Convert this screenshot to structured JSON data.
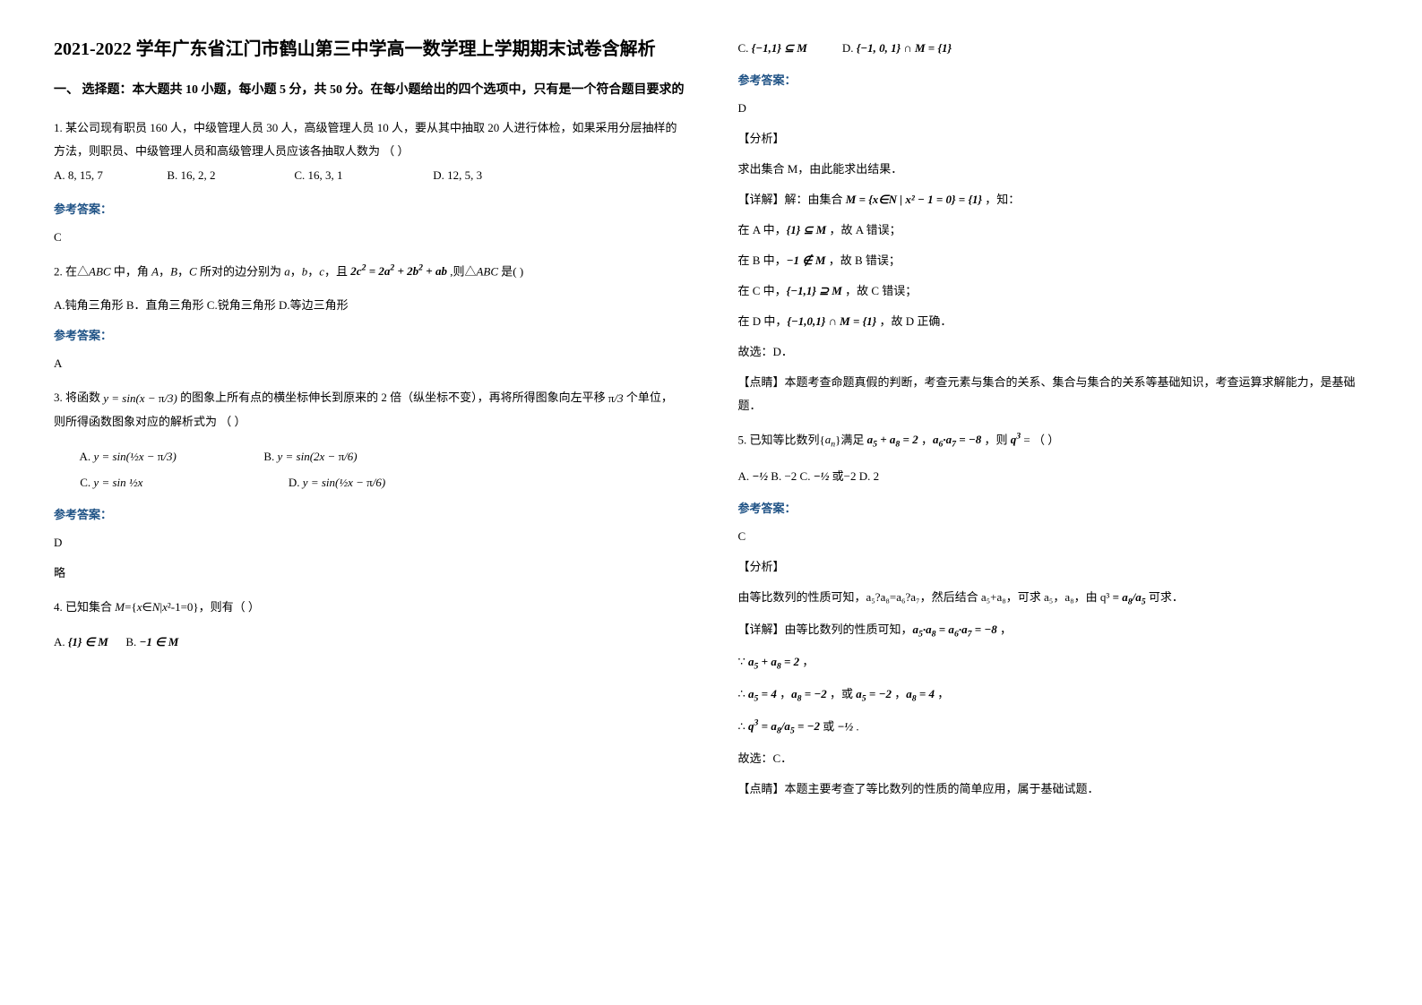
{
  "title": "2021-2022 学年广东省江门市鹤山第三中学高一数学理上学期期末试卷含解析",
  "section1": "一、 选择题：本大题共 10 小题，每小题 5 分，共 50 分。在每小题给出的四个选项中，只有是一个符合题目要求的",
  "q1": {
    "stem": "1. 某公司现有职员 160 人，中级管理人员 30 人，高级管理人员 10 人，要从其中抽取 20 人进行体检，如果采用分层抽样的方法，则职员、中级管理人员和高级管理人员应该各抽取人数为               （            ）",
    "optA": "A.   8, 15, 7",
    "optB": "B.   16, 2, 2",
    "optC": "C.   16, 3, 1",
    "optD": "D.   12, 5, 3",
    "ansLabel": "参考答案：",
    "ans": "C"
  },
  "q2": {
    "stem": "2. 在△ABC 中，角 A，B，C 所对的边分别为 a，b，c，且 2c² = 2a² + 2b² + ab ,则△ABC 是(      )",
    "opts": "A.钝角三角形      B．直角三角形    C.锐角三角形   D.等边三角形",
    "ansLabel": "参考答案：",
    "ans": "A"
  },
  "q3": {
    "stem_pre": "3. 将函数 ",
    "stem_formula": "y = sin(x − π/3)",
    "stem_mid": " 的图象上所有点的横坐标伸长到原来的 2 倍（纵坐标不变），再将所得图象向左平移 ",
    "shift": "π/3",
    "stem_post": " 个单位，则所得函数图象对应的解析式为      （        ）",
    "optA_label": "A.",
    "optA": "y = sin(½x − π/3)",
    "optB_label": "B.",
    "optB": "y = sin(2x − π/6)",
    "optC_label": "C.",
    "optC": "y = sin ½x",
    "optD_label": "D.",
    "optD": "y = sin(½x − π/6)",
    "ansLabel": "参考答案：",
    "ans": "D",
    "note": "略"
  },
  "q4": {
    "stem": "4. 已知集合 M={x∈N|x²-1=0}，则有（    ）",
    "optA_label": "A.",
    "optA": "{1} ∈ M",
    "optB_label": "B.",
    "optB": "−1 ∈ M",
    "optC_label": "C.",
    "optC": "{−1,1} ⊆ M",
    "optD_label": "D.",
    "optD_pre": "{−1, 0, 1} ∩ M = {1}",
    "ansLabel": "参考答案：",
    "ans": "D",
    "fx": "【分析】",
    "fx_body": "求出集合 M，由此能求出结果．",
    "xj": "【详解】解：由集合 M = {x∈N | x² − 1 = 0} = {1} ，知：",
    "lineA": "在 A 中，{1} ⊆ M ，故 A 错误；",
    "lineB": "在 B 中，−1 ∉ M ，故 B 错误；",
    "lineC": "在 C 中，{−1,1} ⊇ M ，故 C 错误；",
    "lineD": "在 D 中，{−1,0,1} ∩ M = {1} ，故 D 正确．",
    "pick": "故选：D．",
    "dj": "【点睛】本题考查命题真假的判断，考查元素与集合的关系、集合与集合的关系等基础知识，考查运算求解能力，是基础题．"
  },
  "q5": {
    "stem": "5. 已知等比数列{aₙ}满足 a₅ + a₈ = 2 ，a₆·a₇ = −8 ，则 q³ = （    ）",
    "optA_label": "A.",
    "optA": "−½",
    "optB": " B. −2  C. ",
    "optC": "−½",
    "optC_post": " 或−2   D. 2",
    "ansLabel": "参考答案：",
    "ans": "C",
    "fx": "【分析】",
    "fx_body_pre": "由等比数列的性质可知，a₅?a₈=a₆?a₇，然后结合 a₅+a₈，可求 a₅，a₈，由 q³ ",
    "fx_body_frac": "= a₈/a₅",
    "fx_body_post": " 可求．",
    "xj": "【详解】由等比数列的性质可知，a₅·a₈ = a₆·a₇ = −8 ，",
    "l1": "∵ a₅ + a₈ = 2 ，",
    "l2": "∴ a₅ = 4 ，a₈ = −2 ，或 a₅ = −2 ，a₈ = 4 ，",
    "l3_pre": "∴ ",
    "l3": "q³ = a₈/a₅ = −2",
    "l3_mid": " 或 ",
    "l3b": "−½",
    "l3_post": " .",
    "pick": "故选：C．",
    "dj": "【点睛】本题主要考查了等比数列的性质的简单应用，属于基础试题．"
  }
}
